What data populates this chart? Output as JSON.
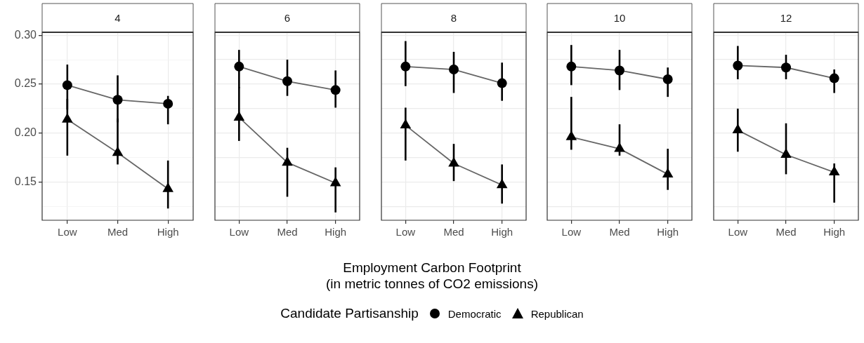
{
  "chart_data": [
    {
      "type": "line",
      "title": "4",
      "categories": [
        "Low",
        "Med",
        "High"
      ],
      "ylim": [
        0.111,
        0.303
      ],
      "yticks": [
        {
          "value": 0.125,
          "label": null
        },
        {
          "value": 0.15,
          "label": "0.15"
        },
        {
          "value": 0.175,
          "label": null
        },
        {
          "value": 0.2,
          "label": "0.20"
        },
        {
          "value": 0.225,
          "label": null
        },
        {
          "value": 0.25,
          "label": "0.25"
        },
        {
          "value": 0.275,
          "label": null
        },
        {
          "value": 0.3,
          "label": "0.30"
        }
      ],
      "grid": true,
      "series": [
        {
          "color": "#000000",
          "marker": "circle",
          "values": [
            0.249,
            0.234,
            0.23
          ],
          "errors": [
            [
              0.224,
              0.27
            ],
            [
              0.211,
              0.259
            ],
            [
              0.209,
              0.238
            ]
          ]
        },
        {
          "color": "#000000",
          "marker": "triangle",
          "values": [
            0.214,
            0.18,
            0.143
          ],
          "errors": [
            [
              0.177,
              0.235
            ],
            [
              0.168,
              0.215
            ],
            [
              0.123,
              0.172
            ]
          ]
        }
      ]
    },
    {
      "type": "line",
      "title": "6",
      "categories": [
        "Low",
        "Med",
        "High"
      ],
      "ylim": [
        0.111,
        0.303
      ],
      "yticks": [
        0.125,
        0.15,
        0.175,
        0.2,
        0.225,
        0.25,
        0.275,
        0.3
      ],
      "grid": true,
      "tick_labels": "x",
      "series": [
        {
          "color": "#000000",
          "marker": "circle",
          "values": [
            0.268,
            0.253,
            0.244
          ],
          "errors": [
            [
              0.246,
              0.285
            ],
            [
              0.238,
              0.275
            ],
            [
              0.226,
              0.264
            ]
          ]
        },
        {
          "color": "#000000",
          "marker": "triangle",
          "values": [
            0.216,
            0.17,
            0.149
          ],
          "errors": [
            [
              0.192,
              0.247
            ],
            [
              0.135,
              0.185
            ],
            [
              0.119,
              0.165
            ]
          ]
        }
      ]
    },
    {
      "type": "line",
      "title": "8",
      "categories": [
        "Low",
        "Med",
        "High"
      ],
      "ylim": [
        0.111,
        0.303
      ],
      "yticks": [
        0.125,
        0.15,
        0.175,
        0.2,
        0.225,
        0.25,
        0.275,
        0.3
      ],
      "grid": true,
      "tick_labels": "x",
      "xlabel": "Employment Carbon Footprint\n(in metric tonnes of CO2 emissions)",
      "legend_title": "Candidate Partisanship",
      "legend": "bottom",
      "series": [
        {
          "name": "Democratic",
          "color": "#000000",
          "marker": "circle",
          "values": [
            0.268,
            0.265,
            0.251
          ],
          "errors": [
            [
              0.248,
              0.294
            ],
            [
              0.241,
              0.283
            ],
            [
              0.233,
              0.272
            ]
          ]
        },
        {
          "name": "Republican",
          "color": "#000000",
          "marker": "triangle",
          "values": [
            0.208,
            0.169,
            0.147
          ],
          "errors": [
            [
              0.172,
              0.226
            ],
            [
              0.151,
              0.189
            ],
            [
              0.128,
              0.168
            ]
          ]
        }
      ]
    },
    {
      "type": "line",
      "title": "10",
      "categories": [
        "Low",
        "Med",
        "High"
      ],
      "ylim": [
        0.111,
        0.303
      ],
      "yticks": [
        0.125,
        0.15,
        0.175,
        0.2,
        0.225,
        0.25,
        0.275,
        0.3
      ],
      "grid": true,
      "tick_labels": "x",
      "series": [
        {
          "color": "#000000",
          "marker": "circle",
          "values": [
            0.268,
            0.264,
            0.255
          ],
          "errors": [
            [
              0.249,
              0.29
            ],
            [
              0.244,
              0.285
            ],
            [
              0.237,
              0.267
            ]
          ]
        },
        {
          "color": "#000000",
          "marker": "triangle",
          "values": [
            0.196,
            0.184,
            0.158
          ],
          "errors": [
            [
              0.183,
              0.237
            ],
            [
              0.177,
              0.209
            ],
            [
              0.142,
              0.184
            ]
          ]
        }
      ]
    },
    {
      "type": "line",
      "title": "12",
      "categories": [
        "Low",
        "Med",
        "High"
      ],
      "ylim": [
        0.111,
        0.303
      ],
      "yticks": [
        0.125,
        0.15,
        0.175,
        0.2,
        0.225,
        0.25,
        0.275,
        0.3
      ],
      "grid": true,
      "tick_labels": "x",
      "series": [
        {
          "color": "#000000",
          "marker": "circle",
          "values": [
            0.269,
            0.267,
            0.256
          ],
          "errors": [
            [
              0.255,
              0.289
            ],
            [
              0.255,
              0.28
            ],
            [
              0.241,
              0.265
            ]
          ]
        },
        {
          "color": "#000000",
          "marker": "triangle",
          "values": [
            0.203,
            0.178,
            0.16
          ],
          "errors": [
            [
              0.181,
              0.225
            ],
            [
              0.158,
              0.21
            ],
            [
              0.129,
              0.169
            ]
          ]
        }
      ]
    }
  ]
}
